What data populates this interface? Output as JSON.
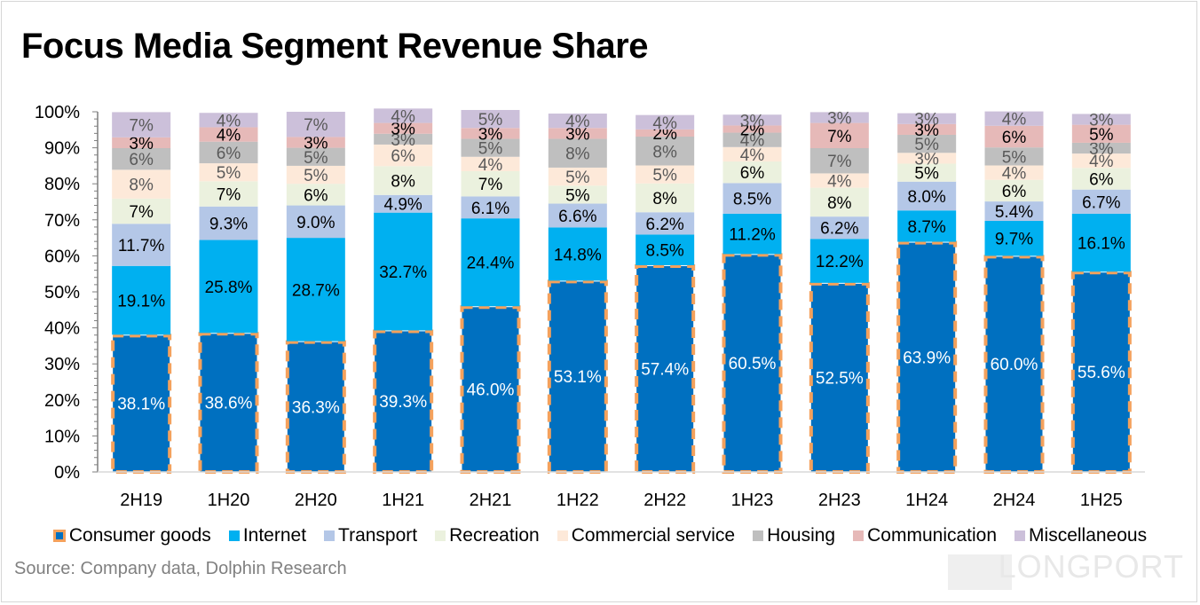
{
  "chart_data": {
    "type": "bar",
    "stacked": true,
    "title": "Focus Media Segment Revenue Share",
    "xlabel": "",
    "ylabel": "",
    "ylim": [
      0,
      100
    ],
    "yticks": [
      "0%",
      "10%",
      "20%",
      "30%",
      "40%",
      "50%",
      "60%",
      "70%",
      "80%",
      "90%",
      "100%"
    ],
    "grid": false,
    "legend_position": "bottom",
    "categories": [
      "2H19",
      "1H20",
      "2H20",
      "1H21",
      "2H21",
      "1H22",
      "2H22",
      "1H23",
      "2H23",
      "1H24",
      "2H24",
      "1H25"
    ],
    "series": [
      {
        "name": "Consumer goods",
        "color": "#0070c0",
        "border": "#f4a15c",
        "label_color": "#ffffff",
        "values": [
          38.1,
          38.6,
          36.3,
          39.3,
          46.0,
          53.1,
          57.4,
          60.5,
          52.5,
          63.9,
          60.0,
          55.6
        ],
        "labels": [
          "38.1%",
          "38.6%",
          "36.3%",
          "39.3%",
          "46.0%",
          "53.1%",
          "57.4%",
          "60.5%",
          "52.5%",
          "63.9%",
          "60.0%",
          "55.6%"
        ]
      },
      {
        "name": "Internet",
        "color": "#00b0f0",
        "label_color": "#000000",
        "values": [
          19.1,
          25.8,
          28.7,
          32.7,
          24.4,
          14.8,
          8.5,
          11.2,
          12.2,
          8.7,
          9.7,
          16.1
        ],
        "labels": [
          "19.1%",
          "25.8%",
          "28.7%",
          "32.7%",
          "24.4%",
          "14.8%",
          "8.5%",
          "11.2%",
          "12.2%",
          "8.7%",
          "9.7%",
          "16.1%"
        ]
      },
      {
        "name": "Transport",
        "color": "#b4c7e7",
        "label_color": "#000000",
        "values": [
          11.7,
          9.3,
          9.0,
          4.9,
          6.1,
          6.6,
          6.2,
          8.5,
          6.2,
          8.0,
          5.4,
          6.7
        ],
        "labels": [
          "11.7%",
          "9.3%",
          "9.0%",
          "4.9%",
          "6.1%",
          "6.6%",
          "6.2%",
          "8.5%",
          "6.2%",
          "8.0%",
          "5.4%",
          "6.7%"
        ]
      },
      {
        "name": "Recreation",
        "color": "#ebf1de",
        "label_color": "#000000",
        "values": [
          7,
          7,
          6,
          8,
          7,
          5,
          8,
          6,
          8,
          5,
          6,
          6
        ],
        "labels": [
          "7%",
          "7%",
          "6%",
          "8%",
          "7%",
          "5%",
          "8%",
          "6%",
          "8%",
          "5%",
          "6%",
          "6%"
        ]
      },
      {
        "name": "Commercial service",
        "color": "#fde9d9",
        "label_color": "#595959",
        "values": [
          8,
          5,
          5,
          6,
          4,
          5,
          5,
          4,
          4,
          3,
          4,
          4
        ],
        "labels": [
          "8%",
          "5%",
          "5%",
          "6%",
          "4%",
          "5%",
          "5%",
          "4%",
          "4%",
          "3%",
          "4%",
          "4%"
        ]
      },
      {
        "name": "Housing",
        "color": "#bfbfbf",
        "label_color": "#595959",
        "values": [
          6,
          6,
          5,
          3,
          5,
          8,
          8,
          4,
          7,
          5,
          5,
          3
        ],
        "labels": [
          "6%",
          "6%",
          "5%",
          "3%",
          "5%",
          "8%",
          "8%",
          "4%",
          "7%",
          "5%",
          "5%",
          "3%"
        ]
      },
      {
        "name": "Communication",
        "color": "#e6b9b8",
        "label_color": "#000000",
        "values": [
          3,
          4,
          3,
          3,
          3,
          3,
          2,
          2,
          7,
          3,
          6,
          5
        ],
        "labels": [
          "3%",
          "4%",
          "3%",
          "3%",
          "3%",
          "3%",
          "2%",
          "2%",
          "7%",
          "3%",
          "6%",
          "5%"
        ]
      },
      {
        "name": "Miscellaneous",
        "color": "#ccc0da",
        "label_color": "#595959",
        "values": [
          7,
          4,
          7,
          4,
          5,
          4,
          4,
          3,
          3,
          3,
          4,
          3
        ],
        "labels": [
          "7%",
          "4%",
          "7%",
          "4%",
          "5%",
          "4%",
          "4%",
          "3%",
          "3%",
          "3%",
          "4%",
          "3%"
        ]
      }
    ]
  },
  "source": "Source:  Company data, Dolphin Research",
  "watermark": "LONGPORT"
}
